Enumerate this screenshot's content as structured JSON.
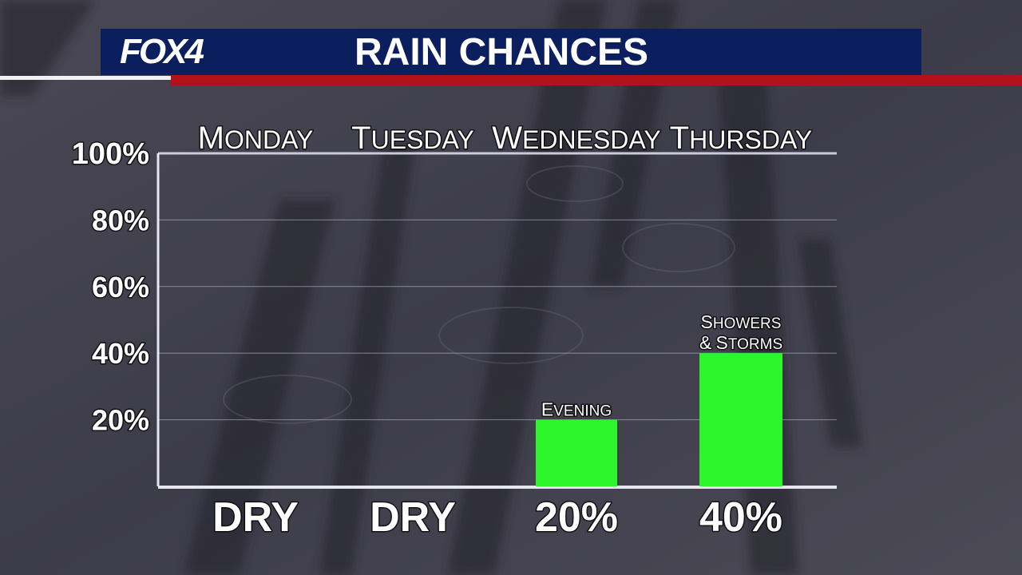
{
  "header": {
    "logo": "FOX4",
    "title": "RAIN CHANCES"
  },
  "colors": {
    "header_bg": "#0b1f5e",
    "accent_red": "#b3121b",
    "bar_green": "#2cf52c",
    "text": "#ffffff"
  },
  "chart_data": {
    "type": "bar",
    "title": "",
    "categories": [
      "Monday",
      "Tuesday",
      "Wednesday",
      "Thursday"
    ],
    "values": [
      0,
      0,
      20,
      40
    ],
    "bottom_labels": [
      "DRY",
      "DRY",
      "20%",
      "40%"
    ],
    "bar_annotations": [
      "",
      "",
      "Evening",
      "Showers & Storms"
    ],
    "y_ticks": [
      "20%",
      "40%",
      "60%",
      "80%",
      "100%"
    ],
    "y_tick_values": [
      20,
      40,
      60,
      80,
      100
    ],
    "ylim": [
      0,
      100
    ],
    "xlabel": "",
    "ylabel": "",
    "grid": true
  }
}
